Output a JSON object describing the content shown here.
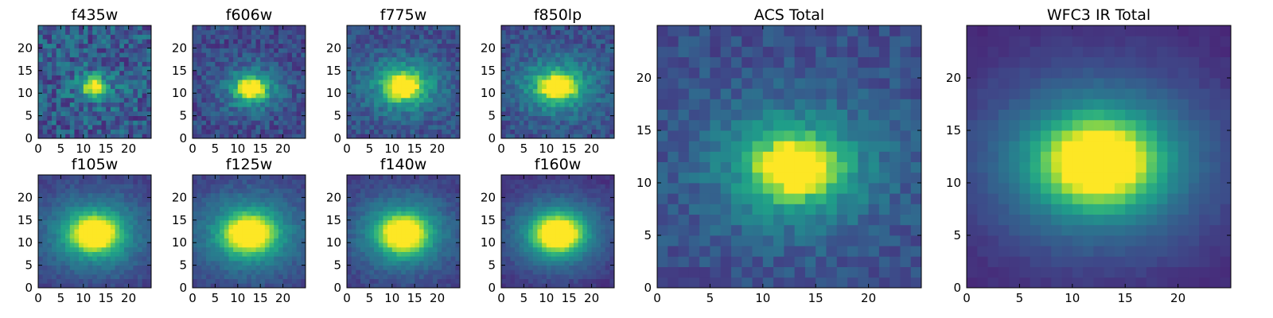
{
  "chart_data": [
    {
      "type": "heatmap",
      "title": "f435w",
      "grid": [
        25,
        25
      ],
      "xlim": [
        0,
        25
      ],
      "ylim": [
        0,
        25
      ],
      "xticks": [
        0,
        5,
        10,
        15,
        20
      ],
      "yticks": [
        0,
        5,
        10,
        15,
        20
      ],
      "peak": [
        12.5,
        11.5
      ],
      "sigma": [
        1.6,
        1.3
      ],
      "halo": 0.18,
      "noise": 0.35,
      "background": 0.28,
      "seed": 11
    },
    {
      "type": "heatmap",
      "title": "f606w",
      "grid": [
        25,
        25
      ],
      "xlim": [
        0,
        25
      ],
      "ylim": [
        0,
        25
      ],
      "xticks": [
        0,
        5,
        10,
        15,
        20
      ],
      "yticks": [
        0,
        5,
        10,
        15,
        20
      ],
      "peak": [
        13.0,
        11.0
      ],
      "sigma": [
        2.0,
        1.5
      ],
      "halo": 0.35,
      "noise": 0.22,
      "background": 0.22,
      "seed": 23
    },
    {
      "type": "heatmap",
      "title": "f775w",
      "grid": [
        25,
        25
      ],
      "xlim": [
        0,
        25
      ],
      "ylim": [
        0,
        25
      ],
      "xticks": [
        0,
        5,
        10,
        15,
        20
      ],
      "yticks": [
        0,
        5,
        10,
        15,
        20
      ],
      "peak": [
        12.5,
        11.5
      ],
      "sigma": [
        2.4,
        1.8
      ],
      "halo": 0.4,
      "noise": 0.2,
      "background": 0.24,
      "seed": 37
    },
    {
      "type": "heatmap",
      "title": "f850lp",
      "grid": [
        25,
        25
      ],
      "xlim": [
        0,
        25
      ],
      "ylim": [
        0,
        25
      ],
      "xticks": [
        0,
        5,
        10,
        15,
        20
      ],
      "yticks": [
        0,
        5,
        10,
        15,
        20
      ],
      "peak": [
        12.5,
        11.5
      ],
      "sigma": [
        2.5,
        1.8
      ],
      "halo": 0.4,
      "noise": 0.2,
      "background": 0.24,
      "seed": 41
    },
    {
      "type": "heatmap",
      "title": "f105w",
      "grid": [
        25,
        25
      ],
      "xlim": [
        0,
        25
      ],
      "ylim": [
        0,
        25
      ],
      "xticks": [
        0,
        5,
        10,
        15,
        20
      ],
      "yticks": [
        0,
        5,
        10,
        15,
        20
      ],
      "peak": [
        12.5,
        12.0
      ],
      "sigma": [
        3.2,
        2.4
      ],
      "halo": 0.45,
      "noise": 0.1,
      "background": 0.18,
      "seed": 53
    },
    {
      "type": "heatmap",
      "title": "f125w",
      "grid": [
        25,
        25
      ],
      "xlim": [
        0,
        25
      ],
      "ylim": [
        0,
        25
      ],
      "xticks": [
        0,
        5,
        10,
        15,
        20
      ],
      "yticks": [
        0,
        5,
        10,
        15,
        20
      ],
      "peak": [
        12.5,
        12.0
      ],
      "sigma": [
        3.3,
        2.5
      ],
      "halo": 0.45,
      "noise": 0.1,
      "background": 0.18,
      "seed": 61
    },
    {
      "type": "heatmap",
      "title": "f140w",
      "grid": [
        25,
        25
      ],
      "xlim": [
        0,
        25
      ],
      "ylim": [
        0,
        25
      ],
      "xticks": [
        0,
        5,
        10,
        15,
        20
      ],
      "yticks": [
        0,
        5,
        10,
        15,
        20
      ],
      "peak": [
        12.5,
        12.0
      ],
      "sigma": [
        3.2,
        2.5
      ],
      "halo": 0.45,
      "noise": 0.1,
      "background": 0.16,
      "seed": 71
    },
    {
      "type": "heatmap",
      "title": "f160w",
      "grid": [
        25,
        25
      ],
      "xlim": [
        0,
        25
      ],
      "ylim": [
        0,
        25
      ],
      "xticks": [
        0,
        5,
        10,
        15,
        20
      ],
      "yticks": [
        0,
        5,
        10,
        15,
        20
      ],
      "peak": [
        12.5,
        12.0
      ],
      "sigma": [
        3.4,
        2.6
      ],
      "halo": 0.42,
      "noise": 0.08,
      "background": 0.12,
      "seed": 83
    },
    {
      "type": "heatmap",
      "title": "ACS Total",
      "grid": [
        25,
        25
      ],
      "xlim": [
        0,
        25
      ],
      "ylim": [
        0,
        25
      ],
      "xticks": [
        0,
        5,
        10,
        15,
        20
      ],
      "yticks": [
        0,
        5,
        10,
        15,
        20
      ],
      "peak": [
        13.0,
        11.5
      ],
      "sigma": [
        2.3,
        1.7
      ],
      "halo": 0.4,
      "noise": 0.16,
      "background": 0.24,
      "seed": 97
    },
    {
      "type": "heatmap",
      "title": "WFC3 IR Total",
      "grid": [
        25,
        25
      ],
      "xlim": [
        0,
        25
      ],
      "ylim": [
        0,
        25
      ],
      "xticks": [
        0,
        5,
        10,
        15,
        20
      ],
      "yticks": [
        0,
        5,
        10,
        15,
        20
      ],
      "peak": [
        12.5,
        12.0
      ],
      "sigma": [
        3.3,
        2.5
      ],
      "halo": 0.45,
      "noise": 0.04,
      "background": 0.1,
      "seed": 101
    }
  ],
  "colormap": [
    "#440154",
    "#482878",
    "#3e4989",
    "#31688e",
    "#26828e",
    "#1f9e89",
    "#35b779",
    "#6ece58",
    "#b5de2b",
    "#fde725"
  ]
}
